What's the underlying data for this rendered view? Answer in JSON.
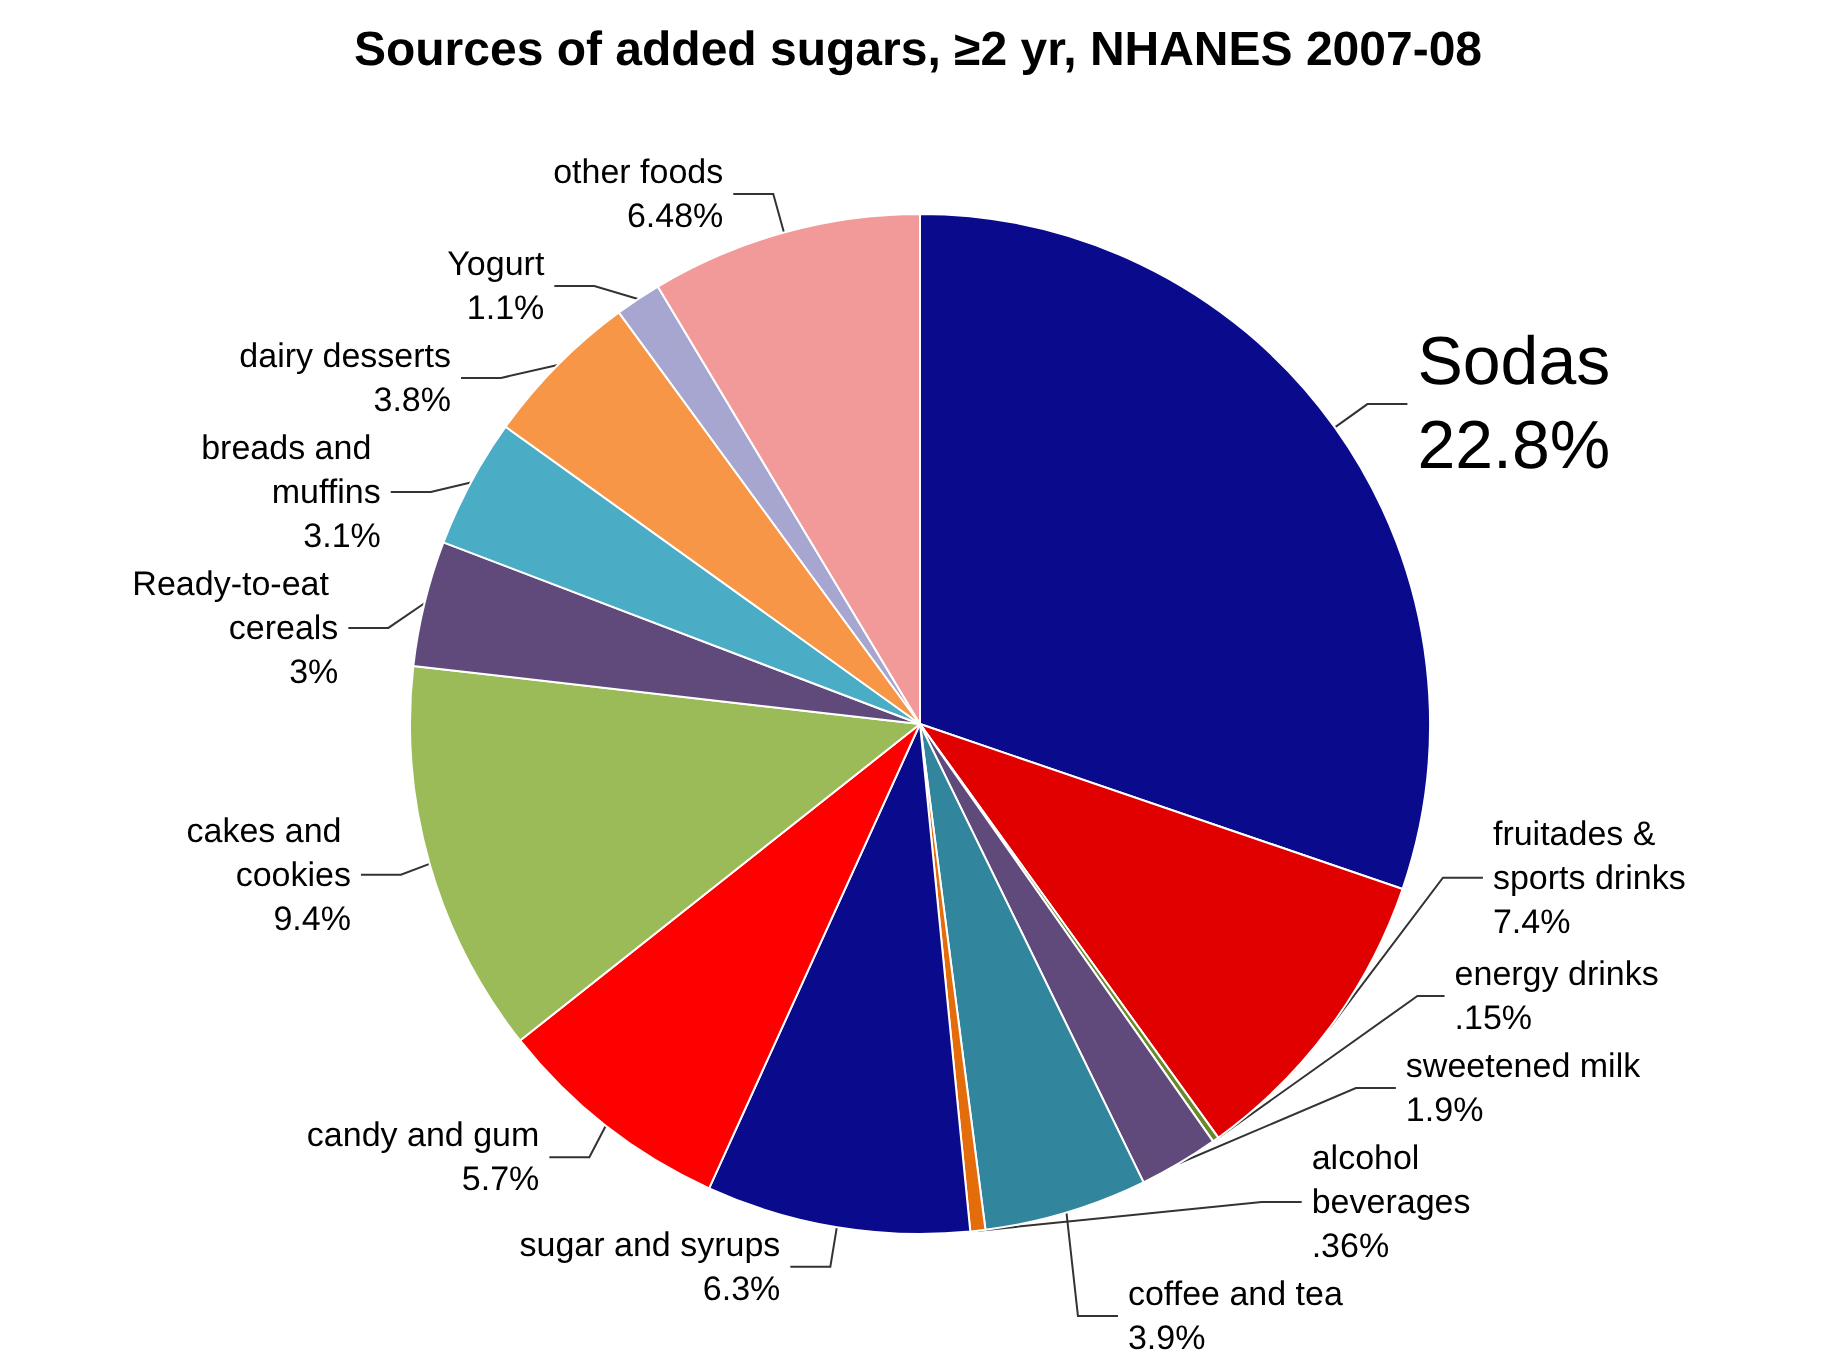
{
  "chart_data": {
    "type": "pie",
    "title": "Sources of added sugars, ≥2 yr, NHANES 2007-08",
    "categories": [
      "Sodas",
      "fruitades & sports drinks",
      "energy drinks",
      "sweetened milk",
      "coffee and tea",
      "alcohol beverages",
      "sugar and syrups",
      "candy and gum",
      "cakes and cookies",
      "Ready-to-eat cereals",
      "breads and muffins",
      "dairy desserts",
      "Yogurt",
      "other foods"
    ],
    "values": [
      22.8,
      7.4,
      0.15,
      1.9,
      3.9,
      0.36,
      6.3,
      5.7,
      9.4,
      3,
      3.1,
      3.8,
      1.1,
      6.48
    ],
    "value_labels": [
      "22.8%",
      "7.4%",
      ".15%",
      "1.9%",
      "3.9%",
      ".36%",
      "6.3%",
      "5.7%",
      "9.4%",
      "3%",
      "3.1%",
      "3.8%",
      "1.1%",
      "6.48%"
    ],
    "colors": [
      "#0a0a8c",
      "#e00000",
      "#6a8a2a",
      "#604a7b",
      "#31859c",
      "#e46c0a",
      "#0a0a8c",
      "#ff0000",
      "#9bbb59",
      "#604a7b",
      "#4bacc6",
      "#f79646",
      "#a6a6d0",
      "#f29a9a"
    ],
    "legend": false
  }
}
